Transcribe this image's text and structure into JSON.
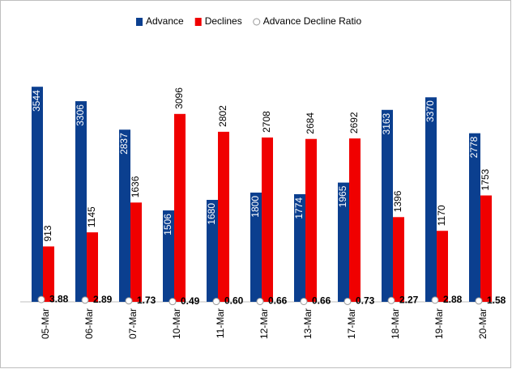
{
  "chart_data": {
    "type": "bar",
    "categories": [
      "05-Mar",
      "06-Mar",
      "07-Mar",
      "10-Mar",
      "11-Mar",
      "12-Mar",
      "13-Mar",
      "17-Mar",
      "18-Mar",
      "19-Mar",
      "20-Mar"
    ],
    "series": [
      {
        "name": "Advance",
        "color": "#0b3f8f",
        "values": [
          3544,
          3306,
          2837,
          1506,
          1680,
          1800,
          1774,
          1965,
          3163,
          3370,
          2778
        ]
      },
      {
        "name": "Declines",
        "color": "#f00000",
        "values": [
          913,
          1145,
          1636,
          3096,
          2802,
          2708,
          2684,
          2692,
          1396,
          1170,
          1753
        ]
      },
      {
        "name": "Advance Decline Ratio",
        "color": "#999999",
        "axis": "y2",
        "values": [
          3.88,
          2.89,
          1.73,
          0.49,
          0.6,
          0.66,
          0.66,
          0.73,
          2.27,
          2.88,
          1.58
        ],
        "value_labels": [
          "3.88",
          "2.89",
          "1.73",
          "0.49",
          "0.60",
          "0.66",
          "0.66",
          "0.73",
          "2.27",
          "2.88",
          "1.58"
        ]
      }
    ],
    "ylim": [
      0,
      4000
    ],
    "y2lim": [
      0,
      400
    ],
    "legend": "top"
  }
}
